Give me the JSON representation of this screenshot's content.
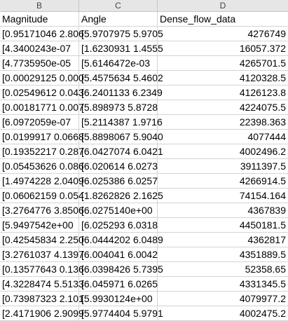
{
  "columns": [
    "B",
    "C",
    "D"
  ],
  "header_row": [
    "Magnitude",
    "Angle",
    "Dense_flow_data"
  ],
  "rows": [
    [
      "[0.95171046 2.806",
      "[5.9707975 5.9705",
      "4276749"
    ],
    [
      "[4.3400243e-07",
      "[1.6230931 1.4555",
      "16057.372"
    ],
    [
      "[4.7735950e-05",
      "[5.6146472e-03",
      "4265701.5"
    ],
    [
      "[0.00029125 0.000",
      "[5.4575634 5.4602",
      "4120328.5"
    ],
    [
      "[0.02549612 0.043",
      "[6.2401133 6.2349",
      "4126123.8"
    ],
    [
      "[0.00181771 0.007",
      "[5.898973  5.8728",
      "4224075.5"
    ],
    [
      "[6.0972059e-07",
      "[5.2114387 1.9716",
      "22398.363"
    ],
    [
      "[0.0199917  0.0668",
      "[5.8898067 5.9040",
      "4077444"
    ],
    [
      "[0.19352217 0.287",
      "[6.0427074 6.0421",
      "4002496.2"
    ],
    [
      "[0.05453626 0.086",
      "[6.020614  6.0273",
      "3911397.5"
    ],
    [
      "[1.4974228  2.0409",
      "[6.025386  6.0257",
      "4266914.5"
    ],
    [
      "[0.06062159 0.054",
      "[1.8262826 2.1625",
      "74154.164"
    ],
    [
      "[3.2764776  3.8506",
      "[6.0275140e+00",
      "4367839"
    ],
    [
      "[5.9497542e+00",
      "[6.025293  6.0318",
      "4450181.5"
    ],
    [
      "[0.42545834 2.250",
      "[6.0444202 6.0489",
      "4362817"
    ],
    [
      "[3.2761037  4.1397",
      "[6.004041  6.0042",
      "4351889.5"
    ],
    [
      "[0.13577643 0.136",
      "[6.0398426 5.7395",
      "52358.65"
    ],
    [
      "[4.3228474  5.5133",
      "[6.045971  6.0265",
      "4331345.5"
    ],
    [
      "[0.73987323 2.101",
      "[5.9930124e+00",
      "4079977.2"
    ],
    [
      "[2.4171906  2.9099",
      "[5.9774404 5.9791",
      "4002475.2"
    ]
  ]
}
